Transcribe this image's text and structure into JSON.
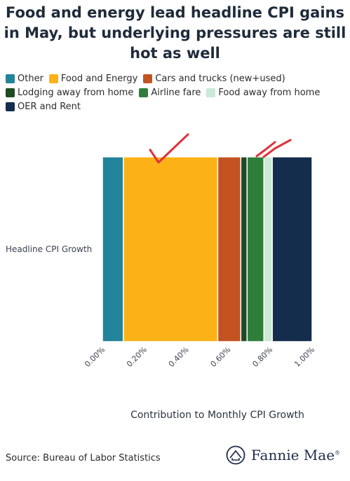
{
  "title_lines": [
    "Food and energy lead headline CPI gains",
    "in May, but underlying pressures are still",
    "hot as well"
  ],
  "source": "Source: Bureau of Labor Statistics",
  "brand": "Fannie Mae",
  "brand_mark": "®",
  "colors": {
    "Other": "#23839a",
    "Food and Energy": "#fcb216",
    "Cars and trucks (new+used)": "#c35320",
    "Lodging away from home": "#1e4a26",
    "Airline fare": "#2e7e3a",
    "Food away from home": "#cce8d6",
    "OER and Rent": "#142d4c",
    "annotation": "#e0313a"
  },
  "chart_data": {
    "type": "bar",
    "orientation": "horizontal",
    "stacked": true,
    "categories": [
      "Headline CPI Growth"
    ],
    "series": [
      {
        "name": "Other",
        "values": [
          0.1
        ]
      },
      {
        "name": "Food and Energy",
        "values": [
          0.45
        ]
      },
      {
        "name": "Cars and trucks (new+used)",
        "values": [
          0.11
        ]
      },
      {
        "name": "Lodging away from home",
        "values": [
          0.03
        ]
      },
      {
        "name": "Airline fare",
        "values": [
          0.08
        ]
      },
      {
        "name": "Food away from home",
        "values": [
          0.04
        ]
      },
      {
        "name": "OER and Rent",
        "values": [
          0.19
        ]
      }
    ],
    "xlabel": "Contribution to Monthly CPI Growth",
    "ylabel": "",
    "xlim": [
      0,
      1.0
    ],
    "xticks": [
      0,
      0.2,
      0.4,
      0.6,
      0.8,
      1.0
    ],
    "xtick_labels": [
      "0.00%",
      "0.20%",
      "0.40%",
      "0.60%",
      "0.80%",
      "1.00%"
    ],
    "legend_position": "top",
    "grid": false
  }
}
